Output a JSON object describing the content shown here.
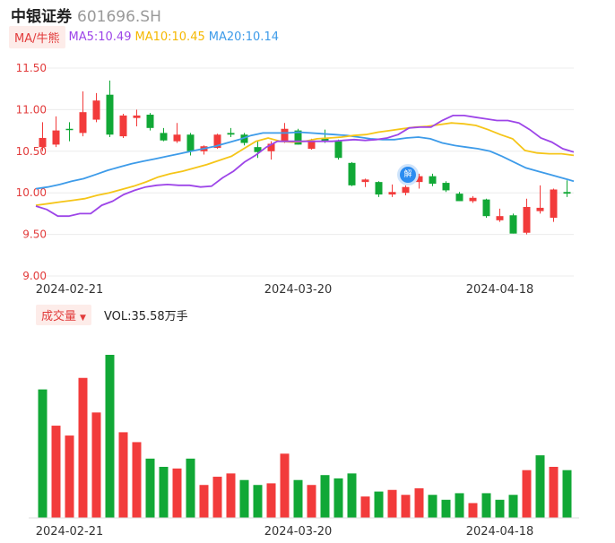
{
  "header": {
    "name": "中银证券",
    "code": "601696.SH"
  },
  "legend": {
    "tag": "MA/牛熊",
    "ma5": "MA5:10.49",
    "ma10": "MA10:10.45",
    "ma20": "MA20:10.14"
  },
  "volume_legend": {
    "tag": "成交量",
    "text": "VOL:35.58万手"
  },
  "event_badge": "解",
  "colors": {
    "up": "#f23b3b",
    "down": "#11a836",
    "ma5": "#9d45e8",
    "ma10": "#f5c518",
    "ma20": "#3d9be9",
    "grid": "#ececec"
  },
  "chart_data": [
    {
      "type": "candlestick",
      "y_ticks": [
        "11.50",
        "11.00",
        "10.50",
        "10.00",
        "9.50",
        "9.00"
      ],
      "ylim": [
        9.0,
        11.5
      ],
      "x_tick_labels": [
        {
          "label": "2024-02-21",
          "index": 2
        },
        {
          "label": "2024-03-20",
          "index": 19
        },
        {
          "label": "2024-04-18",
          "index": 34
        }
      ],
      "ohlc": [
        {
          "o": 10.55,
          "h": 10.85,
          "l": 10.5,
          "c": 10.66
        },
        {
          "o": 10.58,
          "h": 10.92,
          "l": 10.55,
          "c": 10.75
        },
        {
          "o": 10.77,
          "h": 10.85,
          "l": 10.62,
          "c": 10.76
        },
        {
          "o": 10.72,
          "h": 11.22,
          "l": 10.68,
          "c": 10.97
        },
        {
          "o": 10.88,
          "h": 11.2,
          "l": 10.85,
          "c": 11.11
        },
        {
          "o": 11.18,
          "h": 11.35,
          "l": 10.67,
          "c": 10.7
        },
        {
          "o": 10.68,
          "h": 10.95,
          "l": 10.66,
          "c": 10.93
        },
        {
          "o": 10.9,
          "h": 11.0,
          "l": 10.8,
          "c": 10.93
        },
        {
          "o": 10.94,
          "h": 10.96,
          "l": 10.75,
          "c": 10.78
        },
        {
          "o": 10.72,
          "h": 10.78,
          "l": 10.62,
          "c": 10.63
        },
        {
          "o": 10.62,
          "h": 10.84,
          "l": 10.6,
          "c": 10.7
        },
        {
          "o": 10.7,
          "h": 10.72,
          "l": 10.45,
          "c": 10.5
        },
        {
          "o": 10.5,
          "h": 10.57,
          "l": 10.46,
          "c": 10.56
        },
        {
          "o": 10.54,
          "h": 10.71,
          "l": 10.53,
          "c": 10.7
        },
        {
          "o": 10.72,
          "h": 10.78,
          "l": 10.67,
          "c": 10.7
        },
        {
          "o": 10.7,
          "h": 10.72,
          "l": 10.57,
          "c": 10.6
        },
        {
          "o": 10.55,
          "h": 10.62,
          "l": 10.42,
          "c": 10.49
        },
        {
          "o": 10.5,
          "h": 10.62,
          "l": 10.4,
          "c": 10.59
        },
        {
          "o": 10.62,
          "h": 10.84,
          "l": 10.6,
          "c": 10.77
        },
        {
          "o": 10.75,
          "h": 10.77,
          "l": 10.58,
          "c": 10.58
        },
        {
          "o": 10.53,
          "h": 10.65,
          "l": 10.52,
          "c": 10.62
        },
        {
          "o": 10.65,
          "h": 10.76,
          "l": 10.6,
          "c": 10.62
        },
        {
          "o": 10.62,
          "h": 10.64,
          "l": 10.4,
          "c": 10.42
        },
        {
          "o": 10.36,
          "h": 10.37,
          "l": 10.08,
          "c": 10.09
        },
        {
          "o": 10.13,
          "h": 10.17,
          "l": 10.07,
          "c": 10.16
        },
        {
          "o": 10.13,
          "h": 10.14,
          "l": 9.95,
          "c": 9.98
        },
        {
          "o": 9.98,
          "h": 10.1,
          "l": 9.95,
          "c": 10.01
        },
        {
          "o": 10.0,
          "h": 10.09,
          "l": 9.97,
          "c": 10.07
        },
        {
          "o": 10.13,
          "h": 10.23,
          "l": 10.05,
          "c": 10.2
        },
        {
          "o": 10.2,
          "h": 10.23,
          "l": 10.08,
          "c": 10.11
        },
        {
          "o": 10.12,
          "h": 10.14,
          "l": 10.01,
          "c": 10.03
        },
        {
          "o": 9.99,
          "h": 10.01,
          "l": 9.9,
          "c": 9.9
        },
        {
          "o": 9.9,
          "h": 9.96,
          "l": 9.88,
          "c": 9.94
        },
        {
          "o": 9.92,
          "h": 9.93,
          "l": 9.7,
          "c": 9.72
        },
        {
          "o": 9.67,
          "h": 9.81,
          "l": 9.65,
          "c": 9.72
        },
        {
          "o": 9.73,
          "h": 9.75,
          "l": 9.51,
          "c": 9.51
        },
        {
          "o": 9.52,
          "h": 9.93,
          "l": 9.5,
          "c": 9.83
        },
        {
          "o": 9.78,
          "h": 10.09,
          "l": 9.75,
          "c": 9.82
        },
        {
          "o": 9.7,
          "h": 10.05,
          "l": 9.65,
          "c": 10.04
        },
        {
          "o": 10.01,
          "h": 10.15,
          "l": 9.95,
          "c": 9.99
        }
      ],
      "ma5": [
        9.84,
        9.8,
        9.72,
        9.72,
        9.75,
        9.75,
        9.85,
        9.9,
        9.98,
        10.03,
        10.07,
        10.09,
        10.1,
        10.09,
        10.09,
        10.07,
        10.08,
        10.18,
        10.26,
        10.37,
        10.45,
        10.55,
        10.62,
        10.62,
        10.62,
        10.62,
        10.62,
        10.62,
        10.63,
        10.64,
        10.63,
        10.64,
        10.66,
        10.7,
        10.78,
        10.79,
        10.79,
        10.87,
        10.93,
        10.93,
        10.91,
        10.89,
        10.87,
        10.87,
        10.84,
        10.76,
        10.66,
        10.61,
        10.53,
        10.49
      ],
      "ma10": [
        9.85,
        9.87,
        9.89,
        9.91,
        9.93,
        9.97,
        10.0,
        10.04,
        10.08,
        10.13,
        10.19,
        10.23,
        10.26,
        10.3,
        10.34,
        10.39,
        10.44,
        10.53,
        10.62,
        10.66,
        10.62,
        10.61,
        10.62,
        10.65,
        10.66,
        10.67,
        10.69,
        10.7,
        10.73,
        10.75,
        10.77,
        10.79,
        10.8,
        10.82,
        10.84,
        10.83,
        10.81,
        10.76,
        10.7,
        10.65,
        10.51,
        10.48,
        10.47,
        10.47,
        10.45
      ],
      "ma20": [
        10.05,
        10.07,
        10.1,
        10.14,
        10.17,
        10.22,
        10.27,
        10.31,
        10.35,
        10.38,
        10.41,
        10.44,
        10.47,
        10.5,
        10.53,
        10.56,
        10.6,
        10.64,
        10.69,
        10.72,
        10.72,
        10.72,
        10.73,
        10.72,
        10.71,
        10.7,
        10.69,
        10.67,
        10.65,
        10.64,
        10.64,
        10.66,
        10.67,
        10.65,
        10.6,
        10.57,
        10.55,
        10.53,
        10.5,
        10.44,
        10.37,
        10.3,
        10.26,
        10.22,
        10.18,
        10.14
      ]
    },
    {
      "type": "bar",
      "title": "成交量",
      "values": [
        78,
        56,
        50,
        85,
        64,
        99,
        52,
        46,
        36,
        31,
        30,
        36,
        20,
        25,
        27,
        23,
        20,
        21,
        39,
        23,
        20,
        26,
        24,
        27,
        13,
        16,
        17,
        14,
        18,
        14,
        11,
        15,
        9,
        15,
        11,
        14,
        29,
        38,
        31,
        29
      ],
      "colors": [
        "down",
        "up",
        "up",
        "up",
        "up",
        "down",
        "up",
        "up",
        "down",
        "down",
        "up",
        "down",
        "up",
        "up",
        "up",
        "down",
        "down",
        "up",
        "up",
        "down",
        "up",
        "down",
        "down",
        "down",
        "up",
        "down",
        "up",
        "up",
        "up",
        "down",
        "down",
        "down",
        "up",
        "down",
        "down",
        "down",
        "up",
        "down",
        "up",
        "down"
      ]
    }
  ]
}
